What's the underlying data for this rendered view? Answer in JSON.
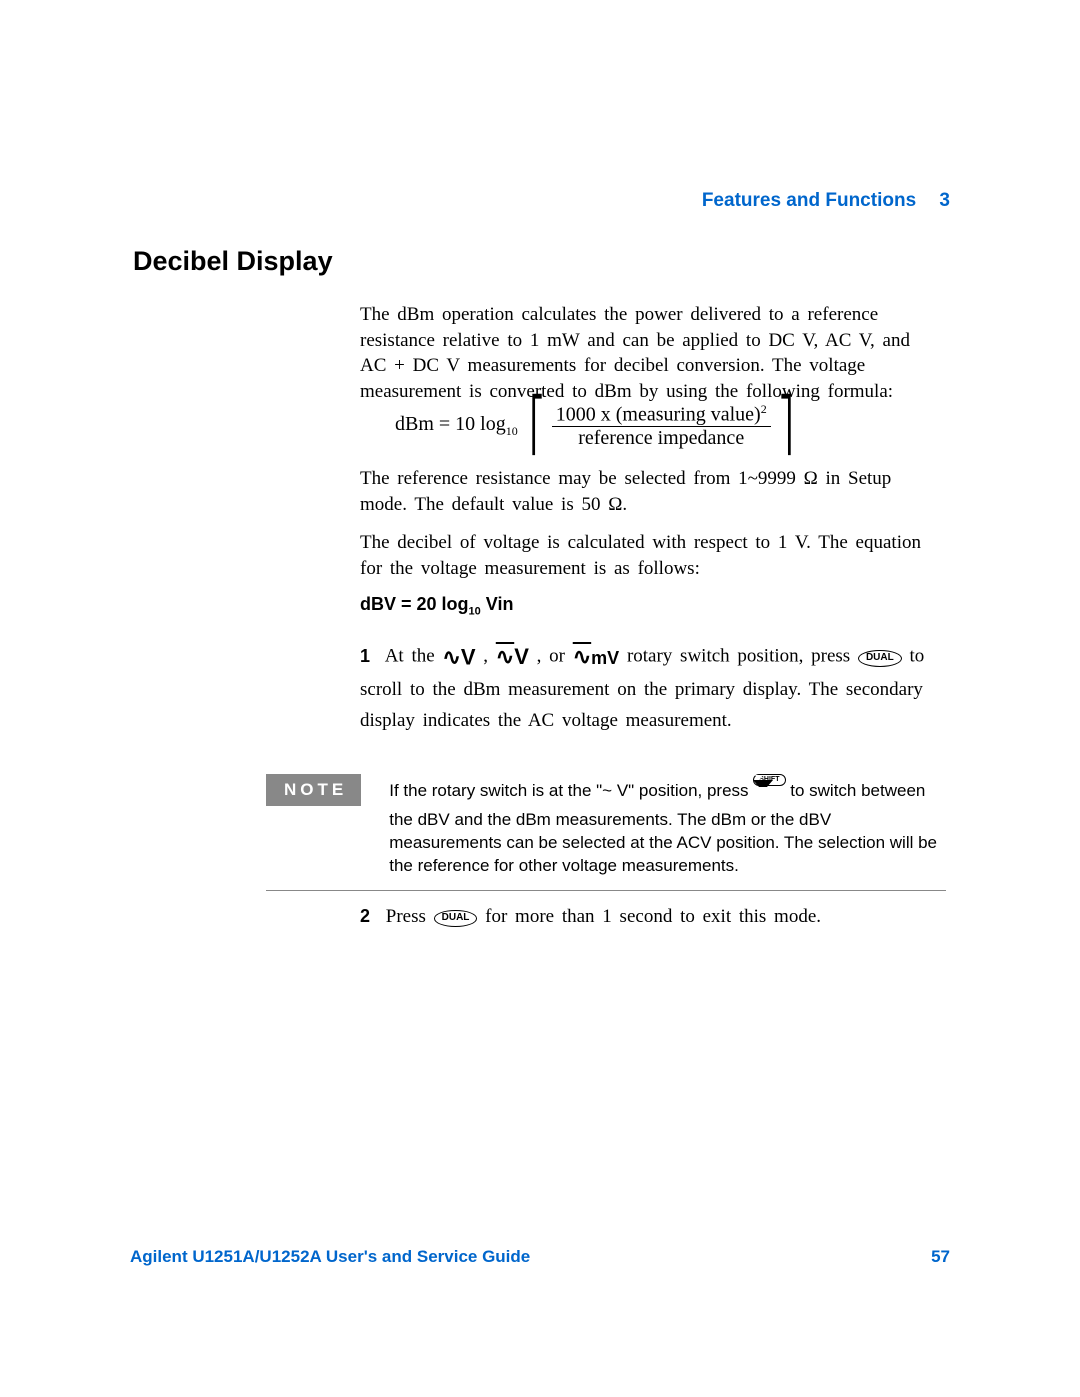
{
  "header": {
    "chapter_title": "Features and Functions",
    "chapter_number": "3"
  },
  "section": {
    "title": "Decibel Display"
  },
  "paragraphs": {
    "intro": "The dBm operation calculates the power delivered to a reference resistance relative to 1 mW and can be applied to DC V, AC V, and AC + DC V measurements for decibel conversion. The voltage measurement is converted to dBm by using the following formula:",
    "ref_res": "The reference resistance may be selected from 1~9999 Ω in Setup mode. The default value is 50 Ω.",
    "dbv_intro": "The decibel of voltage is calculated with respect to 1 V. The equation for the voltage measurement is as follows:"
  },
  "formula": {
    "lhs": "dBm = 10 log",
    "log_sub": "10",
    "numerator_a": "1000 x (measuring value)",
    "numerator_sup": "2",
    "denominator": "reference impedance"
  },
  "dbv_equation": {
    "text_a": "dBV = 20 log",
    "sub": "10",
    "text_b": " Vin"
  },
  "steps": {
    "s1": {
      "num": "1",
      "a": "At the ",
      "sym1": "∿V",
      "comma1": " , ",
      "sym2_wave": "∿",
      "sym2_v": "V",
      "comma2": ", or ",
      "sym3_wave": "∿",
      "sym3_mv": "mV",
      "b": " rotary switch position, press ",
      "btn": "DUAL",
      "c": " to scroll to the dBm measurement on the primary display. The secondary display indicates the AC voltage measurement."
    },
    "s2": {
      "num": "2",
      "a": "Press ",
      "btn": "DUAL",
      "b": " for more than 1 second to exit this mode."
    }
  },
  "note": {
    "label": "NOTE",
    "a": "If the rotary switch is at the \"~ V\" position, press ",
    "shift": "SHIFT",
    "b": " to switch between the dBV and the dBm measurements. The dBm or the dBV measurements can be selected at the ACV position. The selection will be the reference for other voltage measurements."
  },
  "footer": {
    "guide": "Agilent U1251A/U1252A User's and Service Guide",
    "page": "57"
  },
  "colors": {
    "link_blue": "#0066cc",
    "note_gray": "#888888",
    "text": "#000000",
    "bg": "#ffffff"
  }
}
